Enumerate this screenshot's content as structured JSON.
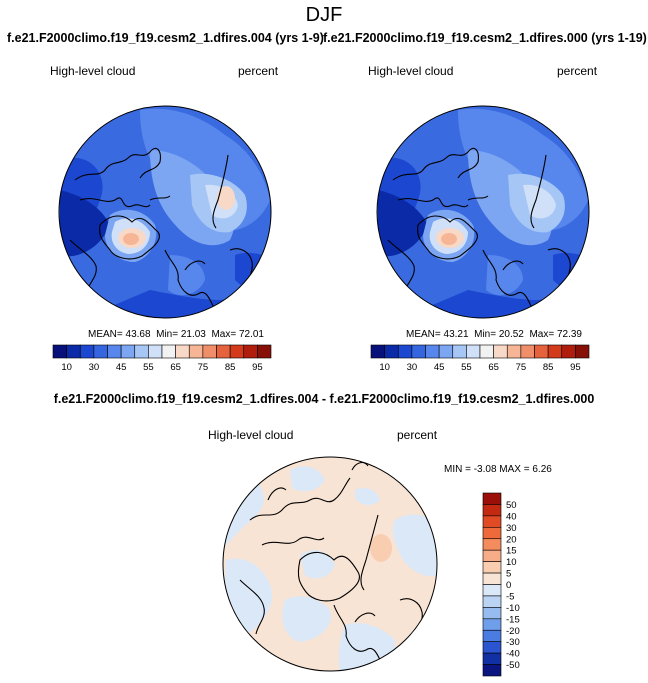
{
  "title": "DJF",
  "panels": [
    {
      "case": "f.e21.F2000climo.f19_f19.cesm2_1.dfires.004 (yrs 1-9)",
      "variable": "High-level cloud",
      "units": "percent",
      "stats": {
        "mean_label": "MEAN=",
        "mean": "43.68",
        "min_label": "Min=",
        "min": "21.03",
        "max_label": "Max=",
        "max": "72.01"
      }
    },
    {
      "case": "f.e21.F2000climo.f19_f19.cesm2_1.dfires.000 (yrs 1-19)",
      "variable": "High-level cloud",
      "units": "percent",
      "stats": {
        "mean_label": "MEAN=",
        "mean": "43.21",
        "min_label": "Min=",
        "min": "20.52",
        "max_label": "Max=",
        "max": "72.39"
      }
    }
  ],
  "diff": {
    "title": "f.e21.F2000climo.f19_f19.cesm2_1.dfires.004 - f.e21.F2000climo.f19_f19.cesm2_1.dfires.000",
    "variable": "High-level cloud",
    "units": "percent",
    "stats_text": "MIN = -3.08 MAX =  6.26"
  },
  "colorbar": {
    "labels": [
      "10",
      "30",
      "45",
      "55",
      "65",
      "75",
      "85",
      "95"
    ],
    "colors": [
      "#08107a",
      "#0a2aa8",
      "#1c47d0",
      "#3566e0",
      "#5787ec",
      "#7ca6f2",
      "#a6c6f6",
      "#cfe0f8",
      "#f2f2f2",
      "#f8d8c6",
      "#f6b696",
      "#f18e6a",
      "#e6623c",
      "#d23a1a",
      "#b01d0c",
      "#861008"
    ]
  },
  "diff_colorbar": {
    "labels": [
      "50",
      "40",
      "30",
      "20",
      "15",
      "10",
      "5",
      "0",
      "-5",
      "-10",
      "-15",
      "-20",
      "-30",
      "-40",
      "-50"
    ],
    "colors": [
      "#9a1008",
      "#c42a12",
      "#e04a24",
      "#ee6a3a",
      "#f48c5e",
      "#f7ae88",
      "#f9cdb0",
      "#f8e4d4",
      "#dbe8f7",
      "#bcd4f3",
      "#97bcef",
      "#6f9eea",
      "#4a7ce2",
      "#2a54d0",
      "#1030a4",
      "#0a1580"
    ]
  }
}
